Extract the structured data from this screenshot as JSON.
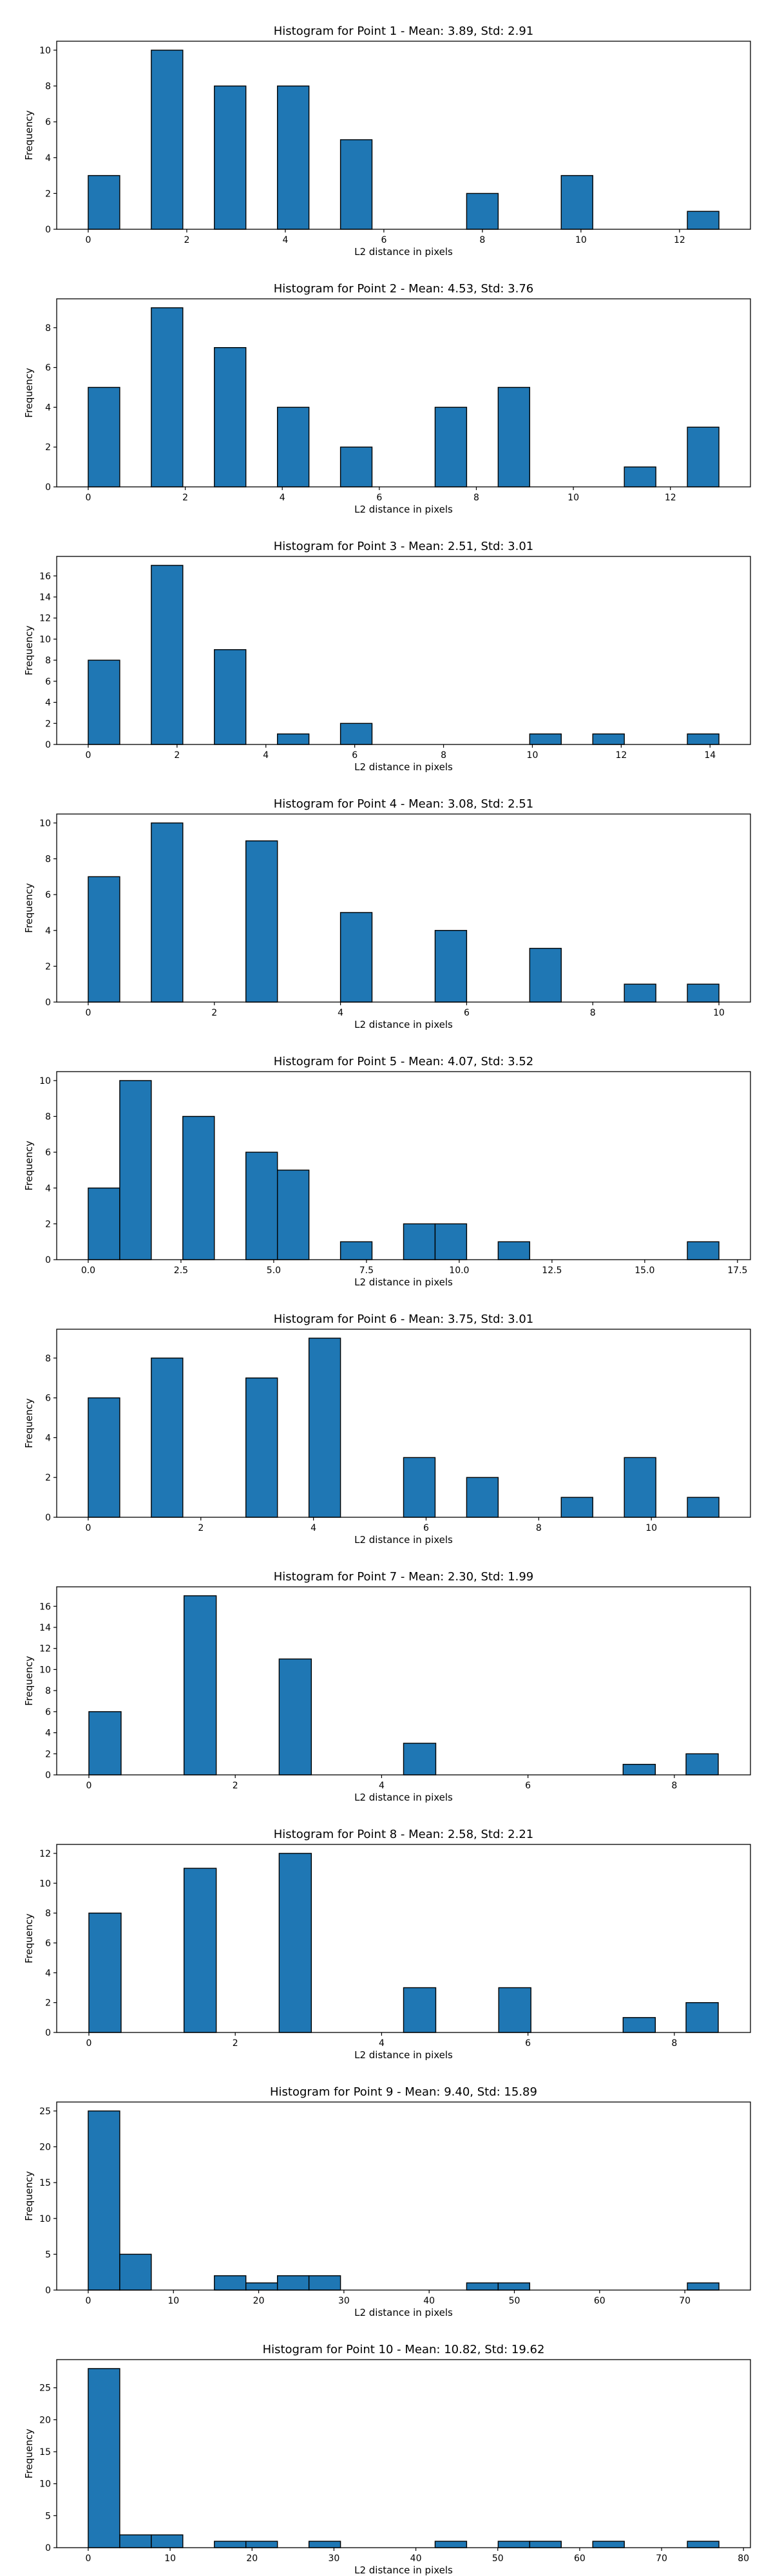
{
  "chart_data": [
    {
      "type": "bar",
      "title": "Histogram for Point 1 - Mean: 3.89, Std: 2.91",
      "xlabel": "L2 distance in pixels",
      "ylabel": "Frequency",
      "xlim": [
        -0.64,
        13.44
      ],
      "ylim": [
        0,
        10.5
      ],
      "xticks": [
        0,
        2,
        4,
        6,
        8,
        10,
        12
      ],
      "yticks": [
        0,
        2,
        4,
        6,
        8,
        10
      ],
      "bin_width": 0.64,
      "bins": [
        {
          "x": 0.0,
          "value": 3
        },
        {
          "x": 1.28,
          "value": 10
        },
        {
          "x": 2.56,
          "value": 8
        },
        {
          "x": 3.84,
          "value": 8
        },
        {
          "x": 5.12,
          "value": 5
        },
        {
          "x": 7.68,
          "value": 2
        },
        {
          "x": 9.6,
          "value": 3
        },
        {
          "x": 12.16,
          "value": 1
        }
      ]
    },
    {
      "type": "bar",
      "title": "Histogram for Point 2 - Mean: 4.53, Std: 3.76",
      "xlabel": "L2 distance in pixels",
      "ylabel": "Frequency",
      "xlim": [
        -0.65,
        13.65
      ],
      "ylim": [
        0,
        9.45
      ],
      "xticks": [
        0,
        2,
        4,
        6,
        8,
        10,
        12
      ],
      "yticks": [
        0,
        2,
        4,
        6,
        8
      ],
      "bin_width": 0.65,
      "bins": [
        {
          "x": 0.0,
          "value": 5
        },
        {
          "x": 1.3,
          "value": 9
        },
        {
          "x": 2.6,
          "value": 7
        },
        {
          "x": 3.9,
          "value": 4
        },
        {
          "x": 5.2,
          "value": 2
        },
        {
          "x": 7.15,
          "value": 4
        },
        {
          "x": 8.45,
          "value": 5
        },
        {
          "x": 11.05,
          "value": 1
        },
        {
          "x": 12.35,
          "value": 3
        }
      ]
    },
    {
      "type": "bar",
      "title": "Histogram for Point 3 - Mean: 2.51, Std: 3.01",
      "xlabel": "L2 distance in pixels",
      "ylabel": "Frequency",
      "xlim": [
        -0.71,
        14.91
      ],
      "ylim": [
        0,
        17.85
      ],
      "xticks": [
        0,
        2,
        4,
        6,
        8,
        10,
        12,
        14
      ],
      "yticks": [
        0,
        2,
        4,
        6,
        8,
        10,
        12,
        14,
        16
      ],
      "bin_width": 0.71,
      "bins": [
        {
          "x": 0.0,
          "value": 8
        },
        {
          "x": 1.42,
          "value": 17
        },
        {
          "x": 2.84,
          "value": 9
        },
        {
          "x": 4.26,
          "value": 1
        },
        {
          "x": 5.68,
          "value": 2
        },
        {
          "x": 9.94,
          "value": 1
        },
        {
          "x": 11.36,
          "value": 1
        },
        {
          "x": 13.49,
          "value": 1
        }
      ]
    },
    {
      "type": "bar",
      "title": "Histogram for Point 4 - Mean: 3.08, Std: 2.51",
      "xlabel": "L2 distance in pixels",
      "ylabel": "Frequency",
      "xlim": [
        -0.5,
        10.5
      ],
      "ylim": [
        0,
        10.5
      ],
      "xticks": [
        0,
        2,
        4,
        6,
        8,
        10
      ],
      "yticks": [
        0,
        2,
        4,
        6,
        8,
        10
      ],
      "bin_width": 0.5,
      "bins": [
        {
          "x": 0.0,
          "value": 7
        },
        {
          "x": 1.0,
          "value": 10
        },
        {
          "x": 2.5,
          "value": 9
        },
        {
          "x": 4.0,
          "value": 5
        },
        {
          "x": 5.5,
          "value": 4
        },
        {
          "x": 7.0,
          "value": 3
        },
        {
          "x": 8.5,
          "value": 1
        },
        {
          "x": 9.5,
          "value": 1
        }
      ]
    },
    {
      "type": "bar",
      "title": "Histogram for Point 5 - Mean: 4.07, Std: 3.52",
      "xlabel": "L2 distance in pixels",
      "ylabel": "Frequency",
      "xlim": [
        -0.85,
        17.85
      ],
      "ylim": [
        0,
        10.5
      ],
      "xticks": [
        0.0,
        2.5,
        5.0,
        7.5,
        10.0,
        12.5,
        15.0,
        17.5
      ],
      "xtick_labels": [
        "0.0",
        "2.5",
        "5.0",
        "7.5",
        "10.0",
        "12.5",
        "15.0",
        "17.5"
      ],
      "yticks": [
        0,
        2,
        4,
        6,
        8,
        10
      ],
      "bin_width": 0.85,
      "bins": [
        {
          "x": 0.0,
          "value": 4
        },
        {
          "x": 0.85,
          "value": 10
        },
        {
          "x": 2.55,
          "value": 8
        },
        {
          "x": 4.25,
          "value": 6
        },
        {
          "x": 5.1,
          "value": 5
        },
        {
          "x": 6.8,
          "value": 1
        },
        {
          "x": 8.5,
          "value": 2
        },
        {
          "x": 9.35,
          "value": 2
        },
        {
          "x": 11.05,
          "value": 1
        },
        {
          "x": 16.15,
          "value": 1
        }
      ]
    },
    {
      "type": "bar",
      "title": "Histogram for Point 6 - Mean: 3.75, Std: 3.01",
      "xlabel": "L2 distance in pixels",
      "ylabel": "Frequency",
      "xlim": [
        -0.56,
        11.76
      ],
      "ylim": [
        0,
        9.45
      ],
      "xticks": [
        0,
        2,
        4,
        6,
        8,
        10
      ],
      "yticks": [
        0,
        2,
        4,
        6,
        8
      ],
      "bin_width": 0.56,
      "bins": [
        {
          "x": 0.0,
          "value": 6
        },
        {
          "x": 1.12,
          "value": 8
        },
        {
          "x": 2.8,
          "value": 7
        },
        {
          "x": 3.92,
          "value": 9
        },
        {
          "x": 5.6,
          "value": 3
        },
        {
          "x": 6.72,
          "value": 2
        },
        {
          "x": 8.4,
          "value": 1
        },
        {
          "x": 9.52,
          "value": 3
        },
        {
          "x": 10.64,
          "value": 1
        }
      ]
    },
    {
      "type": "bar",
      "title": "Histogram for Point 7 - Mean: 2.30, Std: 1.99",
      "xlabel": "L2 distance in pixels",
      "ylabel": "Frequency",
      "xlim": [
        -0.44,
        9.04
      ],
      "ylim": [
        0,
        17.85
      ],
      "xticks": [
        0,
        2,
        4,
        6,
        8
      ],
      "yticks": [
        0,
        2,
        4,
        6,
        8,
        10,
        12,
        14,
        16
      ],
      "bin_width": 0.44,
      "bins": [
        {
          "x": 0.0,
          "value": 6
        },
        {
          "x": 1.3,
          "value": 17
        },
        {
          "x": 2.6,
          "value": 11
        },
        {
          "x": 4.3,
          "value": 3
        },
        {
          "x": 7.3,
          "value": 1
        },
        {
          "x": 8.16,
          "value": 2
        }
      ]
    },
    {
      "type": "bar",
      "title": "Histogram for Point 8 - Mean: 2.58, Std: 2.21",
      "xlabel": "L2 distance in pixels",
      "ylabel": "Frequency",
      "xlim": [
        -0.44,
        9.04
      ],
      "ylim": [
        0,
        12.6
      ],
      "xticks": [
        0,
        2,
        4,
        6,
        8
      ],
      "yticks": [
        0,
        2,
        4,
        6,
        8,
        10,
        12
      ],
      "bin_width": 0.44,
      "bins": [
        {
          "x": 0.0,
          "value": 8
        },
        {
          "x": 1.3,
          "value": 11
        },
        {
          "x": 2.6,
          "value": 12
        },
        {
          "x": 4.3,
          "value": 3
        },
        {
          "x": 5.6,
          "value": 3
        },
        {
          "x": 7.3,
          "value": 1
        },
        {
          "x": 8.16,
          "value": 2
        }
      ]
    },
    {
      "type": "bar",
      "title": "Histogram for Point 9 - Mean: 9.40, Std: 15.89",
      "xlabel": "L2 distance in pixels",
      "ylabel": "Frequency",
      "xlim": [
        -3.7,
        77.7
      ],
      "ylim": [
        0,
        26.25
      ],
      "xticks": [
        0,
        10,
        20,
        30,
        40,
        50,
        60,
        70
      ],
      "yticks": [
        0,
        5,
        10,
        15,
        20,
        25
      ],
      "bin_width": 3.7,
      "bins": [
        {
          "x": 0.0,
          "value": 25
        },
        {
          "x": 3.7,
          "value": 5
        },
        {
          "x": 14.8,
          "value": 2
        },
        {
          "x": 18.5,
          "value": 1
        },
        {
          "x": 22.2,
          "value": 2
        },
        {
          "x": 25.9,
          "value": 2
        },
        {
          "x": 44.4,
          "value": 1
        },
        {
          "x": 48.1,
          "value": 1
        },
        {
          "x": 70.3,
          "value": 1
        }
      ]
    },
    {
      "type": "bar",
      "title": "Histogram for Point 10 - Mean: 10.82, Std: 19.62",
      "xlabel": "L2 distance in pixels",
      "ylabel": "Frequency",
      "xlim": [
        -3.85,
        80.85
      ],
      "ylim": [
        0,
        29.4
      ],
      "xticks": [
        0,
        10,
        20,
        30,
        40,
        50,
        60,
        70,
        80
      ],
      "yticks": [
        0,
        5,
        10,
        15,
        20,
        25
      ],
      "bin_width": 3.85,
      "bins": [
        {
          "x": 0.0,
          "value": 28
        },
        {
          "x": 3.85,
          "value": 2
        },
        {
          "x": 7.7,
          "value": 2
        },
        {
          "x": 15.4,
          "value": 1
        },
        {
          "x": 19.25,
          "value": 1
        },
        {
          "x": 26.95,
          "value": 1
        },
        {
          "x": 42.35,
          "value": 1
        },
        {
          "x": 50.05,
          "value": 1
        },
        {
          "x": 53.9,
          "value": 1
        },
        {
          "x": 61.6,
          "value": 1
        },
        {
          "x": 73.15,
          "value": 1
        }
      ]
    }
  ],
  "colors": {
    "bar_fill": "#1f77b4",
    "bar_edge": "#000000",
    "axis": "#000000"
  }
}
